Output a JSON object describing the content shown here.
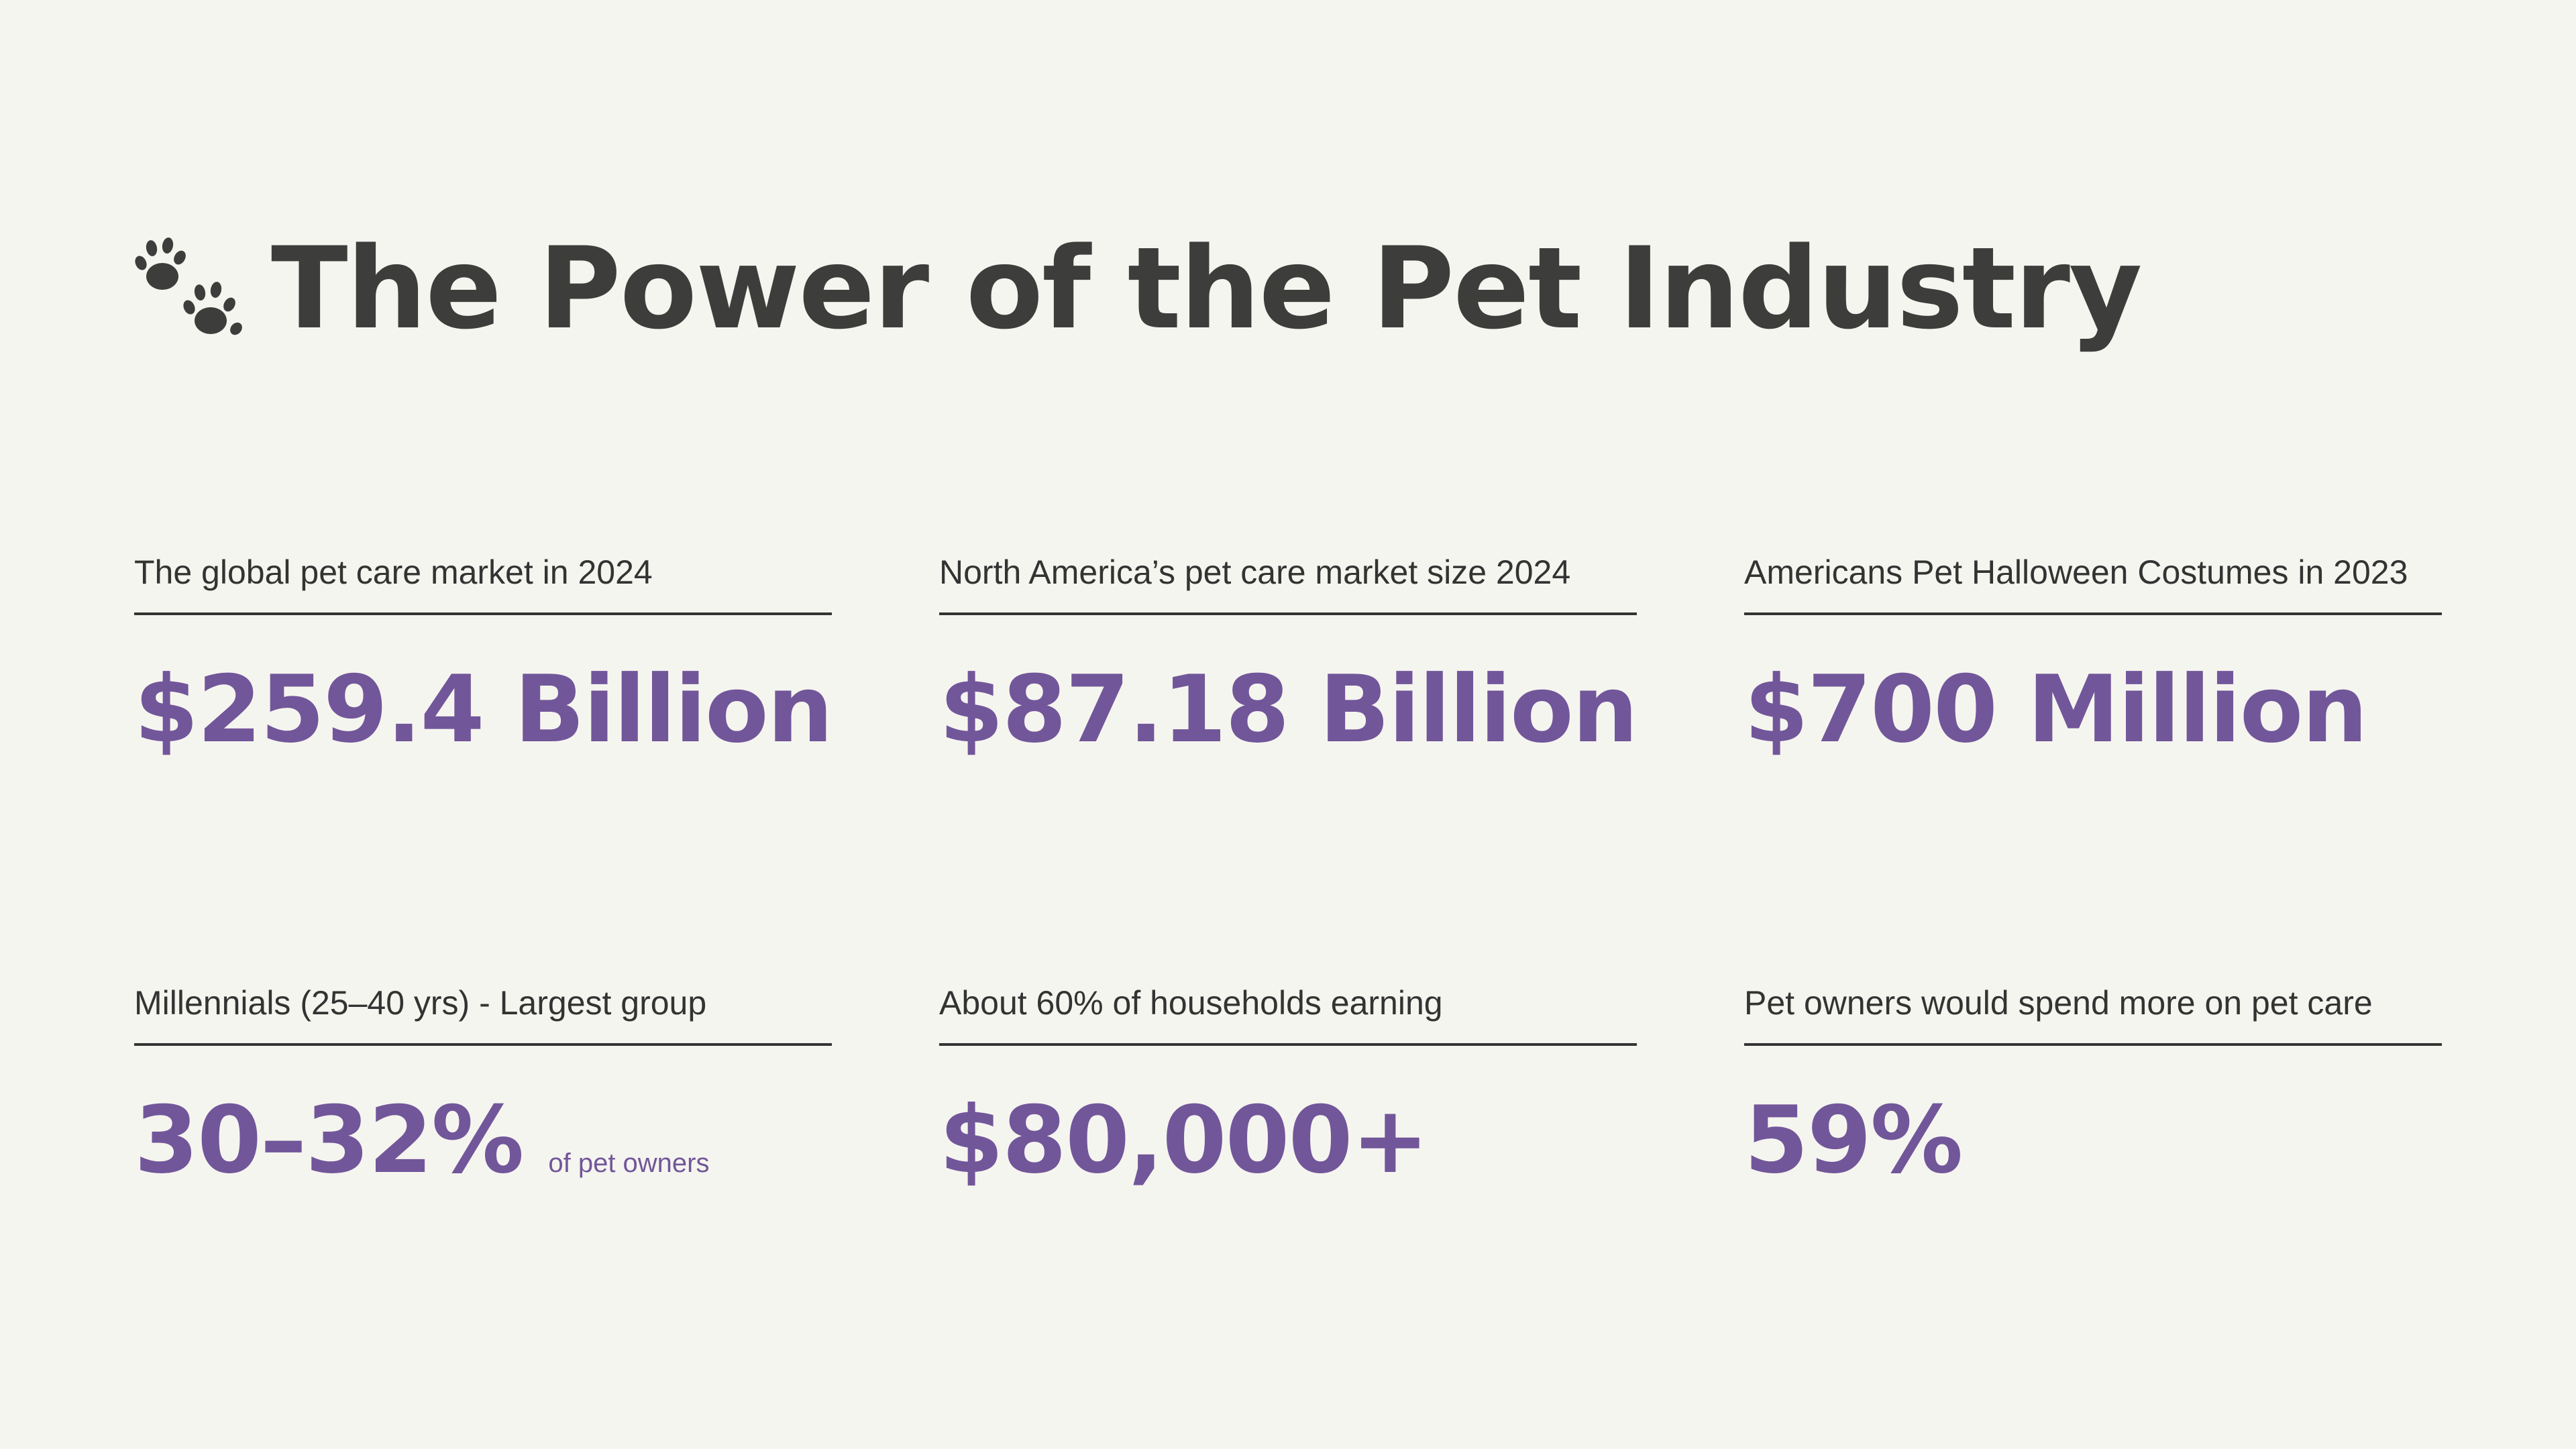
{
  "title": "The Power of the Pet Industry",
  "icon": "paw-prints-icon",
  "colors": {
    "background": "#f5f5ef",
    "heading": "#3d3d3b",
    "accent": "#72569a",
    "rule": "#333333"
  },
  "stats": [
    {
      "label": "The global pet care market in 2024",
      "value": "$259.4 Billion",
      "suffix": ""
    },
    {
      "label": "North America’s pet care market size 2024",
      "value": "$87.18 Billion",
      "suffix": ""
    },
    {
      "label": "Americans Pet Halloween Costumes in 2023",
      "value": "$700 Million",
      "suffix": ""
    },
    {
      "label": "Millennials (25–40 yrs) - Largest group",
      "value": "30–32%",
      "suffix": "of pet owners"
    },
    {
      "label": "About 60% of households earning",
      "value": "$80,000+",
      "suffix": ""
    },
    {
      "label": "Pet owners would spend more on pet care",
      "value": "59%",
      "suffix": ""
    }
  ]
}
